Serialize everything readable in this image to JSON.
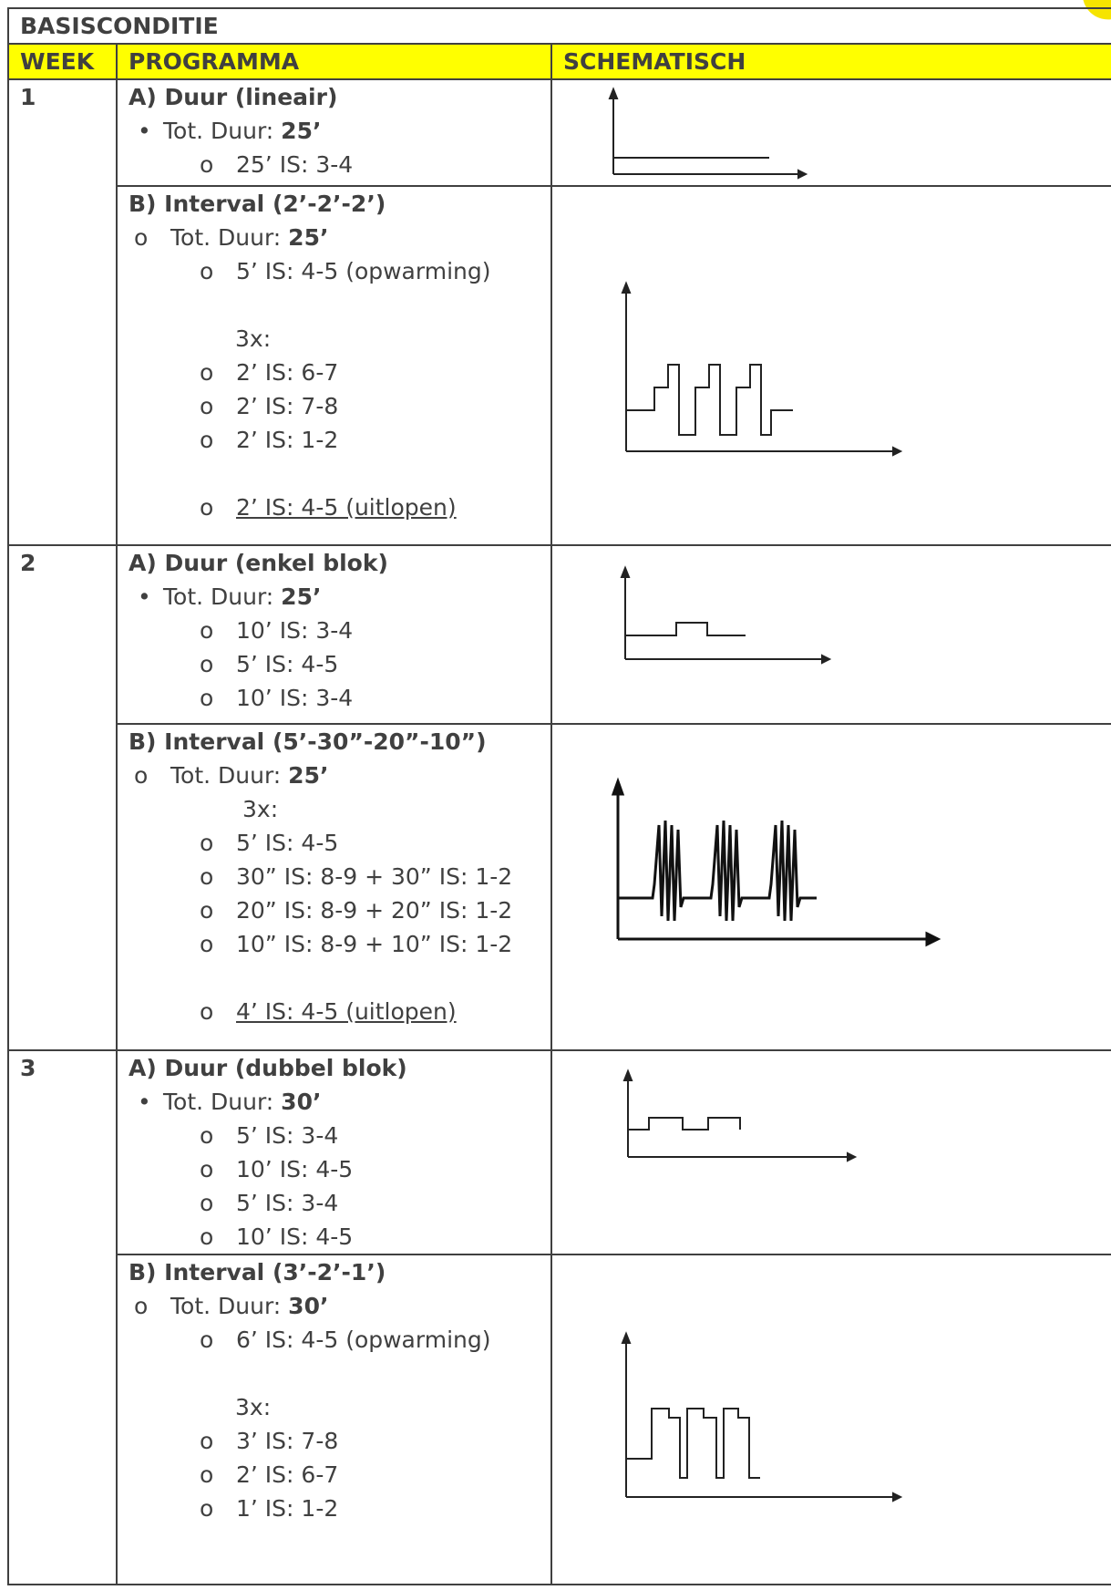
{
  "banner": "BASISCONDITIE",
  "headers": {
    "week": "WEEK",
    "program": "PROGRAMMA",
    "schematic": "SCHEMATISCH"
  },
  "markers": {
    "bullet": "•",
    "circle": "o"
  },
  "weeks": [
    {
      "week": "1",
      "a": {
        "title": "A) Duur (lineair)",
        "total_label": "Tot. Duur: ",
        "total_value": "25’",
        "items": [
          "25’ IS: 3-4"
        ]
      },
      "b": {
        "title": "B) Interval (2’-2’-2’)",
        "total_label": "Tot. Duur: ",
        "total_value": "25’",
        "warmup": "5’ IS: 4-5 (opwarming)",
        "repeat": "3x:",
        "items": [
          "2’ IS: 6-7",
          "2’ IS: 7-8",
          "2’ IS: 1-2"
        ],
        "cooldown": "2’ IS: 4-5 (uitlopen)"
      }
    },
    {
      "week": "2",
      "a": {
        "title": "A) Duur (enkel blok)",
        "total_label": "Tot. Duur: ",
        "total_value": "25’",
        "items": [
          "10’ IS: 3-4",
          "5’ IS: 4-5",
          "10’ IS: 3-4"
        ]
      },
      "b": {
        "title": "B) Interval (5’-30”-20”-10”)",
        "total_label": "Tot. Duur: ",
        "total_value": "25’",
        "repeat": "3x:",
        "items": [
          "5’ IS: 4-5",
          "30” IS: 8-9 + 30” IS: 1-2",
          "20” IS: 8-9 + 20” IS: 1-2",
          "10” IS: 8-9 + 10” IS: 1-2"
        ],
        "cooldown": "4’ IS: 4-5 (uitlopen)"
      }
    },
    {
      "week": "3",
      "a": {
        "title": "A) Duur (dubbel blok)",
        "total_label": "Tot. Duur: ",
        "total_value": "30’",
        "items": [
          "5’ IS: 3-4",
          "10’ IS: 4-5",
          "5’ IS: 3-4",
          "10’ IS: 4-5"
        ]
      },
      "b": {
        "title": "B) Interval (3’-2’-1’)",
        "total_label": "Tot. Duur: ",
        "total_value": "30’",
        "warmup": "6’ IS: 4-5 (opwarming)",
        "repeat": "3x:",
        "items": [
          "3’ IS: 7-8",
          "2’ IS: 6-7",
          "1’ IS: 1-2"
        ]
      }
    }
  ],
  "colors": {
    "header_bg": "#ffff00",
    "text": "#404040",
    "corner_accent": "#f6e400"
  }
}
